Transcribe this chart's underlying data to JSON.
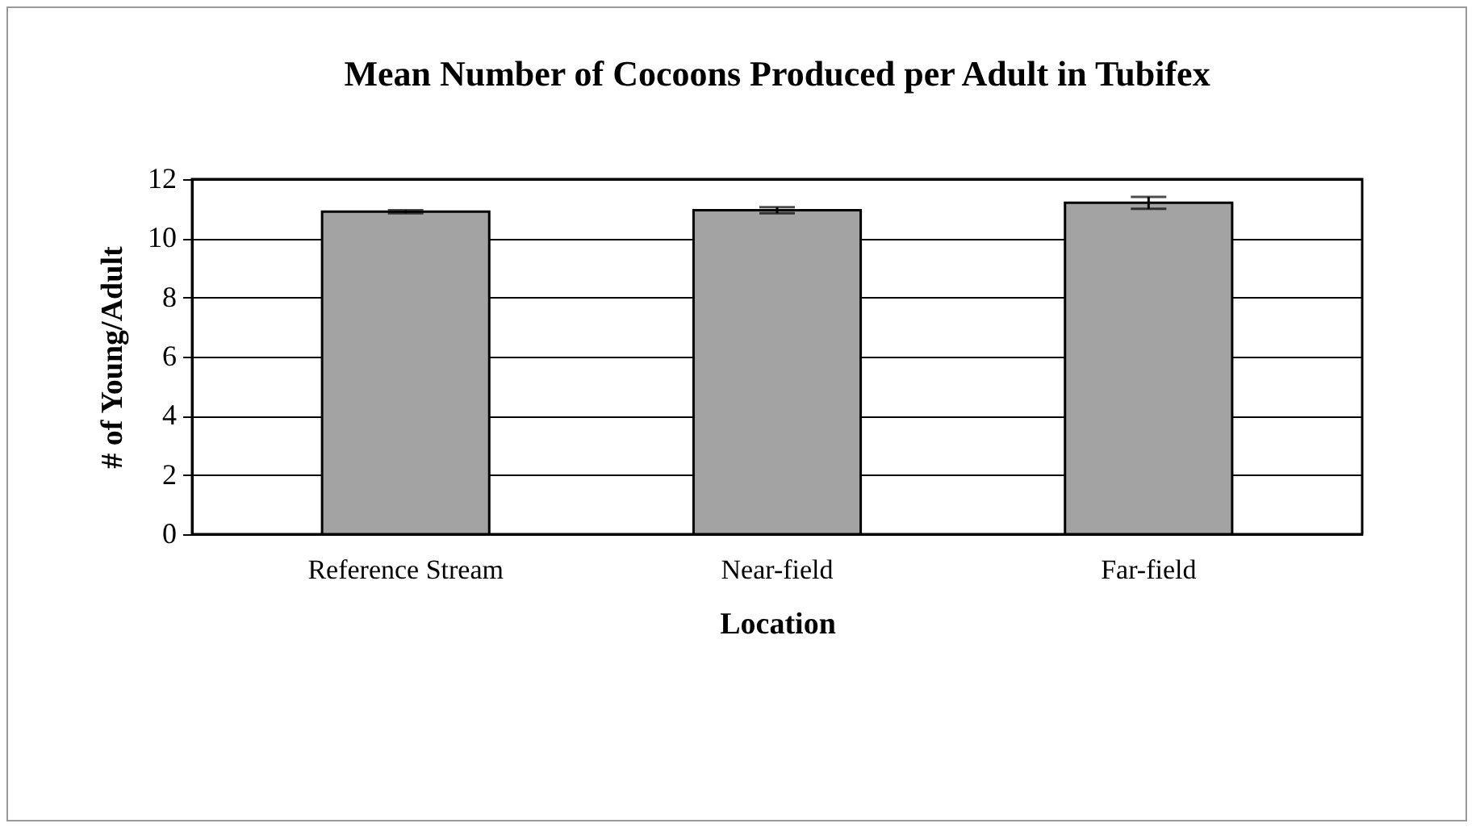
{
  "chart_data": {
    "type": "bar",
    "title": "Mean Number of Cocoons Produced per Adult in Tubifex",
    "xlabel": "Location",
    "ylabel": "# of Young/Adult",
    "categories": [
      "Reference Stream",
      "Near-field",
      "Far-field"
    ],
    "values": [
      10.9,
      10.95,
      11.2
    ],
    "errors": [
      0.05,
      0.1,
      0.2
    ],
    "color": "#a3a3a3",
    "ylim": [
      0,
      12
    ],
    "yticks": [
      0,
      2,
      4,
      6,
      8,
      10,
      12
    ],
    "grid": "y"
  }
}
